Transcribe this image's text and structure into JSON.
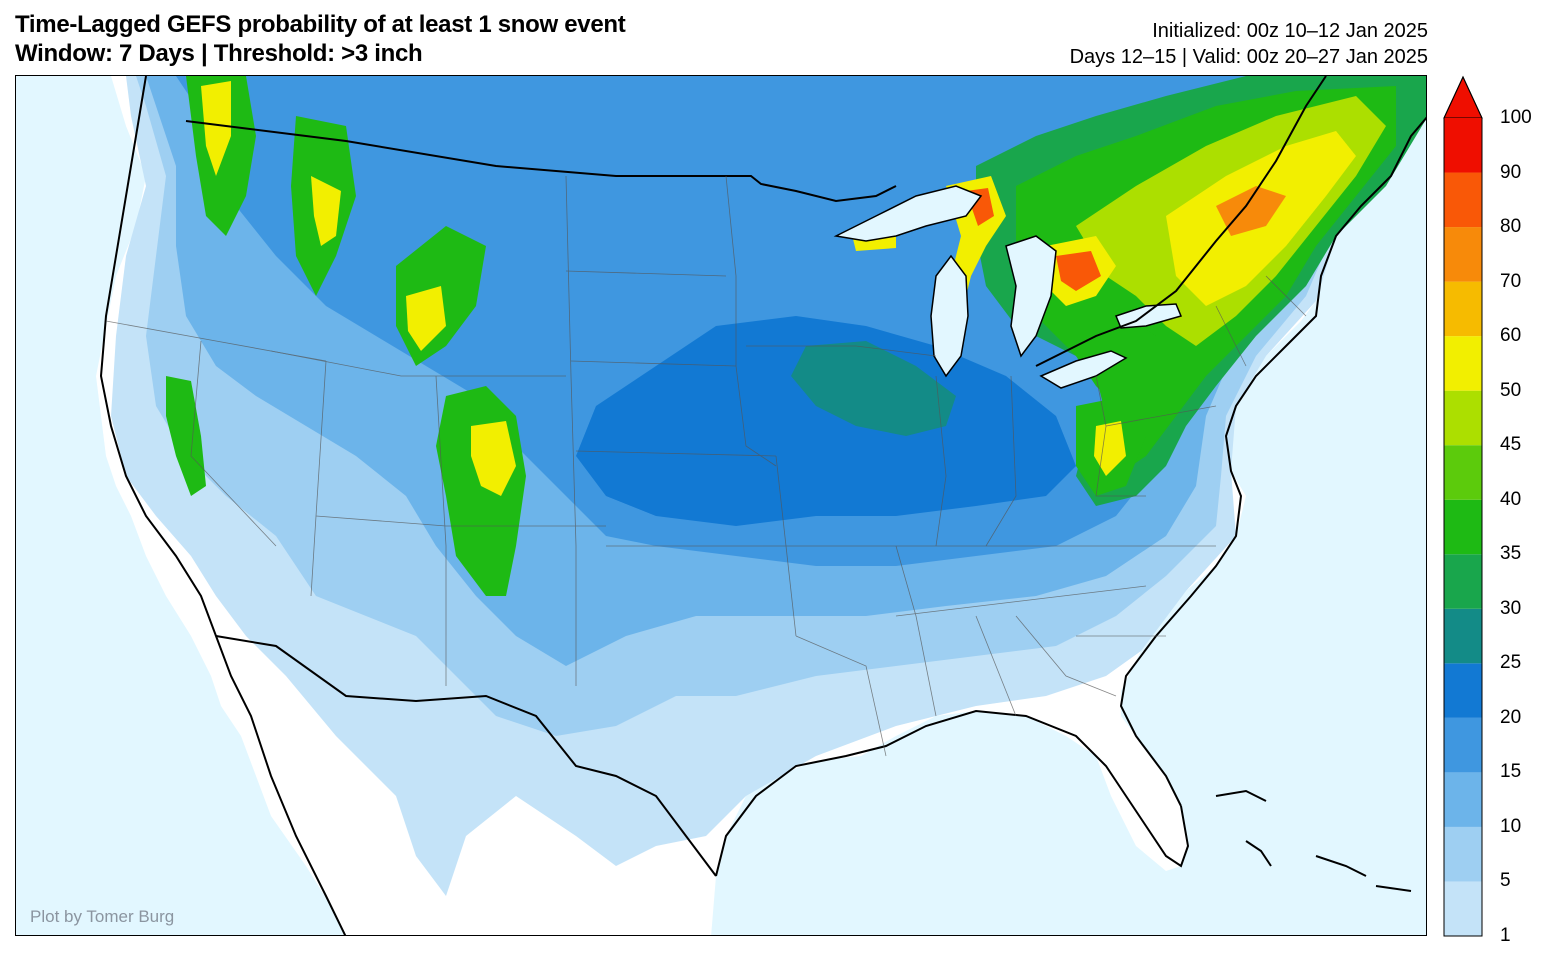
{
  "header": {
    "title_line1": "Time-Lagged GEFS probability of at least 1 snow event",
    "title_line2": "Window: 7 Days | Threshold: >3 inch",
    "init_line": "Initialized: 00z 10–12 Jan 2025",
    "valid_line": "Days 12–15 | Valid: 00z 20–27 Jan 2025"
  },
  "map": {
    "credit": "Plot by Tomer Burg",
    "ocean_color": "#e2f7ff",
    "land_color": "#ffffff"
  },
  "colorbar": {
    "levels": [
      "1",
      "5",
      "10",
      "15",
      "20",
      "25",
      "30",
      "35",
      "40",
      "45",
      "50",
      "60",
      "70",
      "80",
      "90",
      "100"
    ],
    "colors": [
      "#c4e3f8",
      "#9ecff2",
      "#6cb4ea",
      "#3f97e0",
      "#1279d3",
      "#138b87",
      "#19a64c",
      "#1eba14",
      "#5ccb0c",
      "#acdf00",
      "#f2ef00",
      "#f6bb00",
      "#f78a0a",
      "#f95807",
      "#ef0e00"
    ],
    "extend_color": "#ef0e00"
  }
}
